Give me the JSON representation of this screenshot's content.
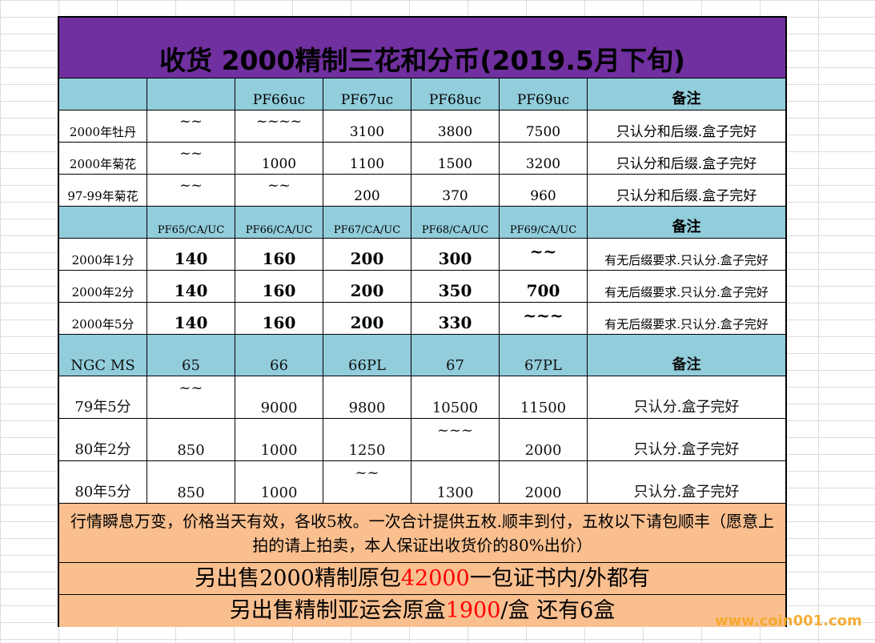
{
  "title": "收货 2000精制三花和分币(2019.5月下旬)",
  "section1": {
    "header": [
      "",
      "",
      "PF66uc",
      "PF67uc",
      "PF68uc",
      "PF69uc",
      "备注"
    ],
    "rows": [
      [
        "2000年牡丹",
        "~~",
        "~~~~",
        "3100",
        "3800",
        "7500",
        "只认分和后缀.盒子完好"
      ],
      [
        "2000年菊花",
        "~~",
        "1000",
        "1100",
        "1500",
        "3200",
        "只认分和后缀.盒子完好"
      ],
      [
        "97-99年菊花",
        "~~",
        "~~",
        "200",
        "370",
        "960",
        "只认分和后缀.盒子完好"
      ]
    ]
  },
  "section2": {
    "header": [
      "",
      "PF65/CA/UC",
      "PF66/CA/UC",
      "PF67/CA/UC",
      "PF68/CA/UC",
      "PF69/CA/UC",
      "备注"
    ],
    "rows": [
      [
        "2000年1分",
        "140",
        "160",
        "200",
        "300",
        "~~",
        "有无后缀要求.只认分.盒子完好"
      ],
      [
        "2000年2分",
        "140",
        "160",
        "200",
        "350",
        "700",
        "有无后缀要求.只认分.盒子完好"
      ],
      [
        "2000年5分",
        "140",
        "160",
        "200",
        "330",
        "~~~",
        "有无后缀要求.只认分.盒子完好"
      ]
    ]
  },
  "section3": {
    "header": [
      "NGC MS",
      "65",
      "66",
      "66PL",
      "67",
      "67PL",
      "备注"
    ],
    "rows": [
      [
        "79年5分",
        "~~",
        "9000",
        "9800",
        "10500",
        "11500",
        "只认分.盒子完好"
      ],
      [
        "80年2分",
        "850",
        "1000",
        "1250",
        "~~~",
        "2000",
        "只认分.盒子完好"
      ],
      [
        "80年5分",
        "850",
        "1000",
        "~~",
        "1300",
        "2000",
        "只认分.盒子完好"
      ]
    ]
  },
  "footer": {
    "line1": "行情瞬息万变，价格当天有效，各收5枚。一次合计提供五枚.顺丰到付，五枚以下请包顺丰（愿意上拍的请上拍卖，本人保证出收货价的80%出价）",
    "line2_pre": "另出售2000精制原包",
    "line2_price": "42000",
    "line2_post": "一包证书内/外都有",
    "line3_pre": "另出售精制亚运会原盒",
    "line3_price": "1900",
    "line3_post": "/盒  还有6盒"
  },
  "watermark": "www.coin001.com",
  "colors": {
    "title_bg": "#7030a0",
    "header_bg": "#92cddc",
    "footer_bg": "#fabf8f",
    "price_red": "#ff0000",
    "watermark": "#f5a623"
  }
}
